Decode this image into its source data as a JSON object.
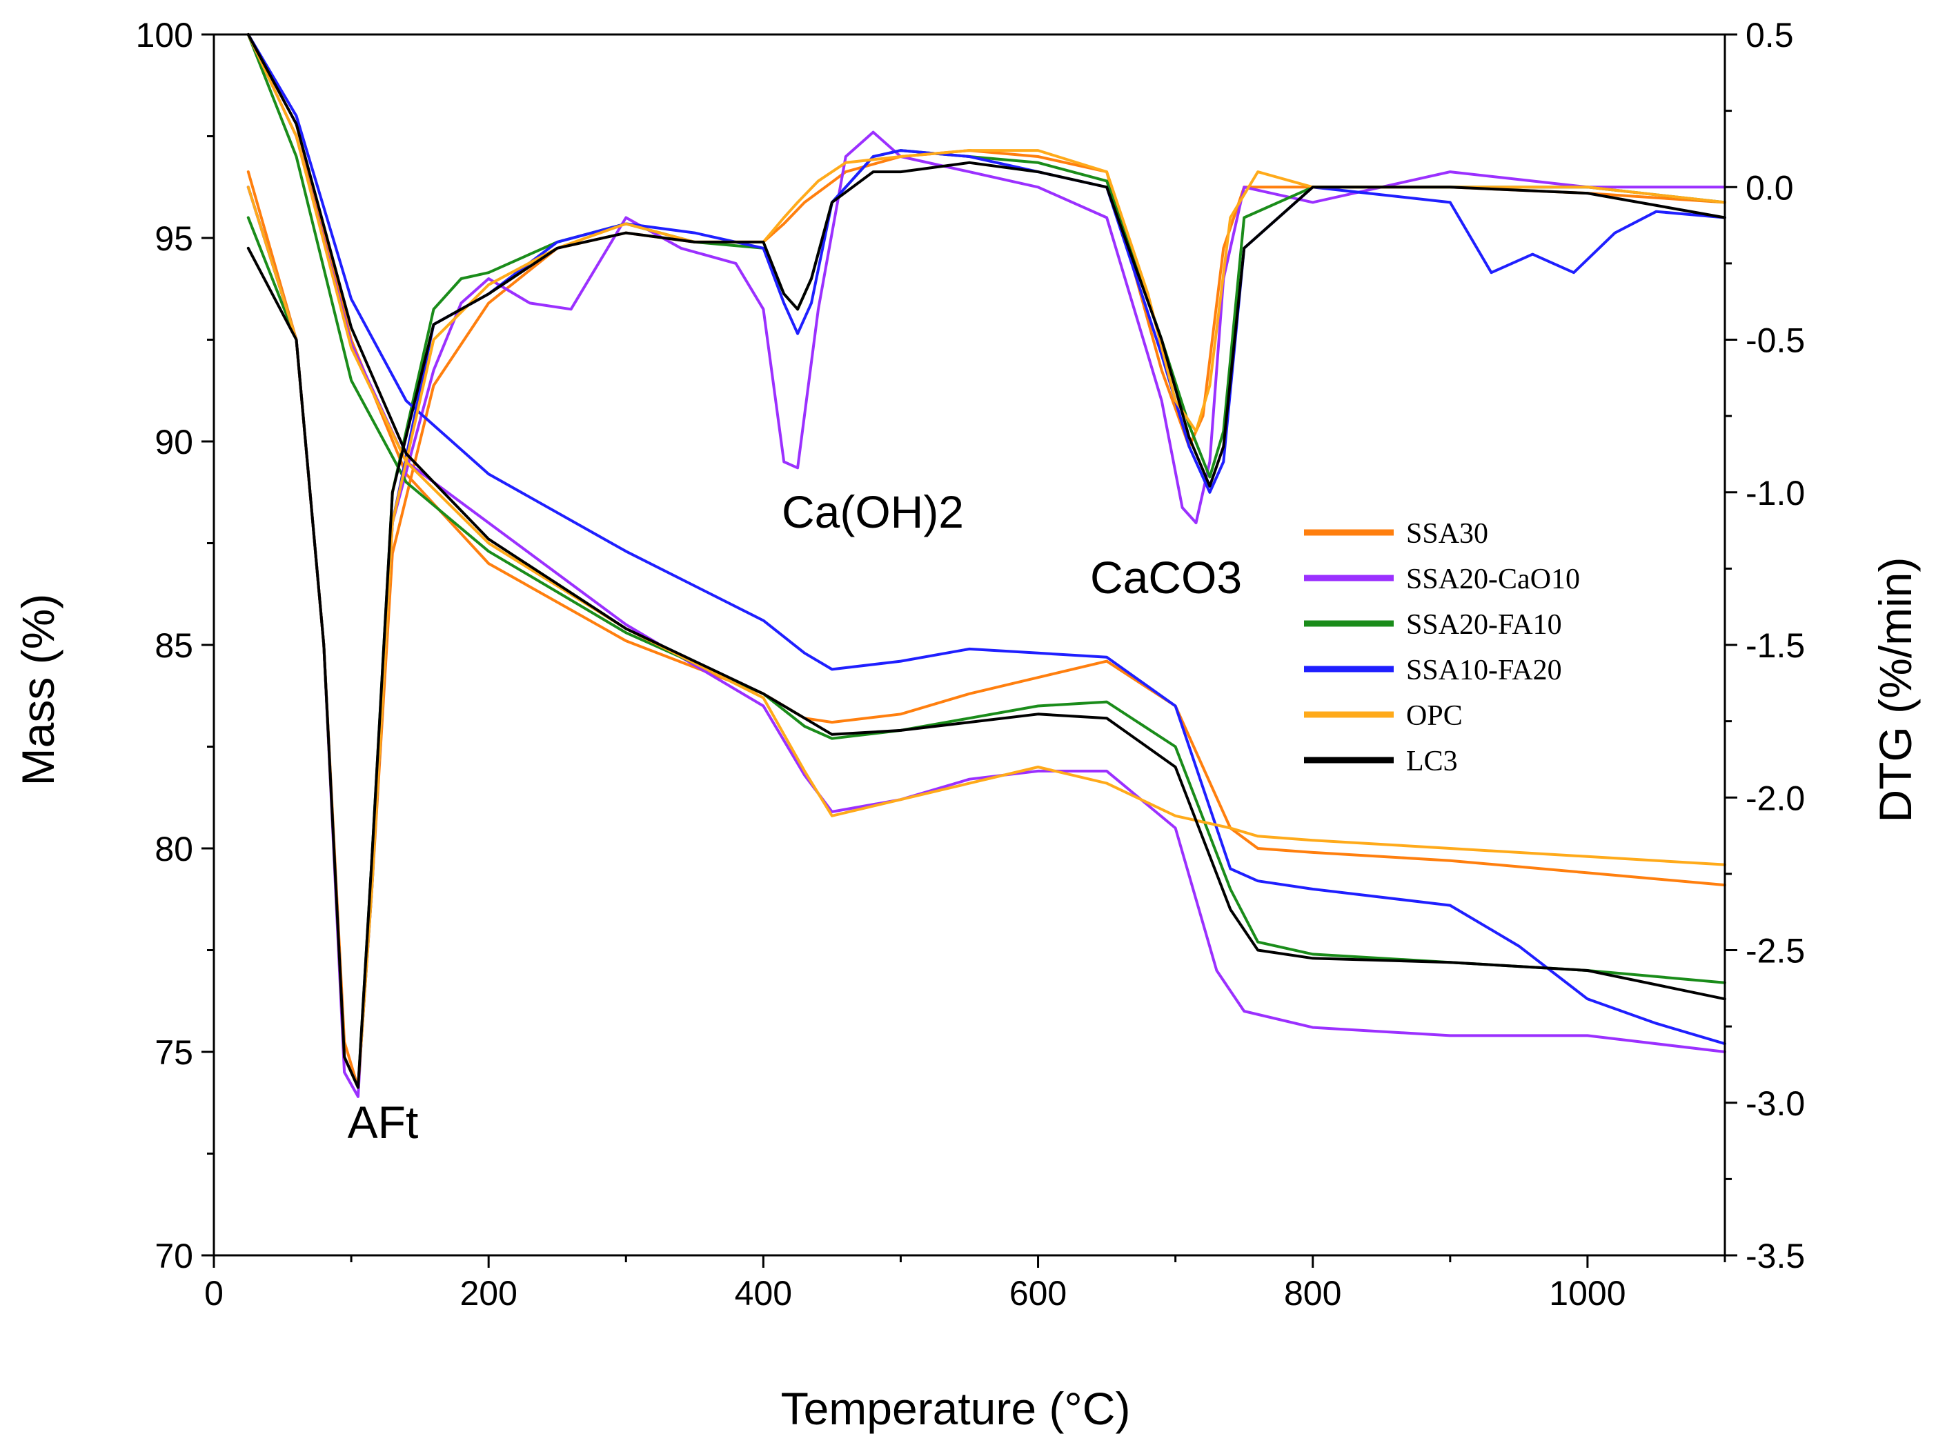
{
  "chart_data": {
    "type": "line",
    "title": "",
    "xlabel": "Temperature (°C)",
    "ylabel_left": "Mass (%)",
    "ylabel_right": "DTG (%/min)",
    "xlim": [
      0,
      1100
    ],
    "ylim_left": [
      70,
      100
    ],
    "ylim_right": [
      -3.5,
      0.5
    ],
    "x_ticks": [
      0,
      200,
      400,
      600,
      800,
      1000
    ],
    "x_tick_labels": [
      "0",
      "200",
      "400",
      "600",
      "800",
      "1000"
    ],
    "left_ticks": [
      70,
      75,
      80,
      85,
      90,
      95,
      100
    ],
    "left_tick_labels": [
      "70",
      "75",
      "80",
      "85",
      "90",
      "95",
      "100"
    ],
    "right_ticks": [
      -3.5,
      -3.0,
      -2.5,
      -2.0,
      -1.5,
      -1.0,
      -0.5,
      0.0,
      0.5
    ],
    "right_tick_labels": [
      "-3.5",
      "-3.0",
      "-2.5",
      "-2.0",
      "-1.5",
      "-1.0",
      "-0.5",
      "0.0",
      "0.5"
    ],
    "grid": false,
    "legend_position": "center-right",
    "annotations": [
      {
        "text": "AFt",
        "x": 100,
        "y_dtg": -3.1
      },
      {
        "text": "Ca(OH)2",
        "x": 480,
        "y_dtg": -1.1
      },
      {
        "text": "CaCO3",
        "x": 785,
        "y_dtg": -1.35
      }
    ],
    "series": [
      {
        "name": "SSA30",
        "color": "#FF7F0E",
        "mass": {
          "x": [
            25,
            60,
            100,
            140,
            200,
            300,
            400,
            430,
            450,
            500,
            550,
            600,
            650,
            700,
            740,
            760,
            800,
            900,
            1000,
            1100
          ],
          "y": [
            100,
            97.8,
            92.5,
            89.2,
            87.0,
            85.1,
            83.8,
            83.2,
            83.1,
            83.3,
            83.8,
            84.2,
            84.6,
            83.5,
            80.5,
            80.0,
            79.9,
            79.7,
            79.4,
            79.1
          ]
        },
        "dtg": {
          "x": [
            25,
            60,
            80,
            95,
            105,
            115,
            130,
            160,
            200,
            250,
            300,
            350,
            400,
            415,
            430,
            445,
            460,
            500,
            550,
            600,
            650,
            690,
            710,
            720,
            735,
            750,
            800,
            900,
            1000,
            1100
          ],
          "y": [
            0.05,
            -0.5,
            -1.5,
            -2.8,
            -2.95,
            -2.3,
            -1.2,
            -0.65,
            -0.38,
            -0.2,
            -0.15,
            -0.18,
            -0.18,
            -0.12,
            -0.05,
            0.0,
            0.05,
            0.1,
            0.12,
            0.1,
            0.05,
            -0.6,
            -0.85,
            -0.75,
            -0.2,
            0.0,
            0.0,
            0.0,
            -0.02,
            -0.05
          ]
        }
      },
      {
        "name": "SSA20-CaO10",
        "color": "#9B30FF",
        "mass": {
          "x": [
            25,
            60,
            100,
            140,
            200,
            300,
            400,
            430,
            450,
            500,
            550,
            600,
            650,
            700,
            730,
            750,
            800,
            900,
            1000,
            1100
          ],
          "y": [
            100,
            97.5,
            92.4,
            89.5,
            88.0,
            85.5,
            83.5,
            81.8,
            80.9,
            81.2,
            81.7,
            81.9,
            81.9,
            80.5,
            77.0,
            76.0,
            75.6,
            75.4,
            75.4,
            75.0
          ]
        },
        "dtg": {
          "x": [
            25,
            60,
            80,
            95,
            105,
            115,
            130,
            160,
            180,
            200,
            230,
            260,
            300,
            340,
            380,
            400,
            415,
            425,
            440,
            460,
            480,
            500,
            550,
            600,
            650,
            690,
            705,
            715,
            725,
            735,
            750,
            800,
            900,
            1000,
            1100
          ],
          "y": [
            0.0,
            -0.5,
            -1.5,
            -2.9,
            -2.98,
            -2.2,
            -1.1,
            -0.6,
            -0.38,
            -0.3,
            -0.38,
            -0.4,
            -0.1,
            -0.2,
            -0.25,
            -0.4,
            -0.9,
            -0.92,
            -0.4,
            0.1,
            0.18,
            0.1,
            0.05,
            0.0,
            -0.1,
            -0.7,
            -1.05,
            -1.1,
            -0.9,
            -0.3,
            0.0,
            -0.05,
            0.05,
            0.0,
            0.0
          ]
        }
      },
      {
        "name": "SSA20-FA10",
        "color": "#1A8C1A",
        "mass": {
          "x": [
            25,
            60,
            100,
            140,
            200,
            300,
            400,
            430,
            450,
            500,
            550,
            600,
            650,
            700,
            740,
            760,
            800,
            900,
            1000,
            1100
          ],
          "y": [
            100,
            97.0,
            91.5,
            89.0,
            87.3,
            85.3,
            83.8,
            83.0,
            82.7,
            82.9,
            83.2,
            83.5,
            83.6,
            82.5,
            79.0,
            77.7,
            77.4,
            77.2,
            77.0,
            76.7
          ]
        },
        "dtg": {
          "x": [
            25,
            60,
            80,
            95,
            105,
            115,
            130,
            160,
            180,
            200,
            250,
            300,
            350,
            400,
            415,
            425,
            435,
            450,
            480,
            500,
            550,
            600,
            650,
            690,
            710,
            725,
            735,
            750,
            800,
            900,
            1000,
            1100
          ],
          "y": [
            -0.1,
            -0.5,
            -1.5,
            -2.85,
            -2.95,
            -2.2,
            -1.0,
            -0.4,
            -0.3,
            -0.28,
            -0.18,
            -0.12,
            -0.18,
            -0.2,
            -0.35,
            -0.4,
            -0.3,
            -0.05,
            0.1,
            0.12,
            0.1,
            0.08,
            0.02,
            -0.5,
            -0.78,
            -0.95,
            -0.8,
            -0.1,
            0.0,
            0.0,
            0.0,
            -0.05
          ]
        }
      },
      {
        "name": "SSA10-FA20",
        "color": "#1F1FFF",
        "mass": {
          "x": [
            25,
            60,
            100,
            140,
            200,
            300,
            400,
            430,
            450,
            500,
            550,
            600,
            650,
            700,
            740,
            760,
            800,
            900,
            950,
            1000,
            1050,
            1100
          ],
          "y": [
            100,
            98.0,
            93.5,
            91.0,
            89.2,
            87.3,
            85.6,
            84.8,
            84.4,
            84.6,
            84.9,
            84.8,
            84.7,
            83.5,
            79.5,
            79.2,
            79.0,
            78.6,
            77.6,
            76.3,
            75.7,
            75.2
          ]
        },
        "dtg": {
          "x": [
            25,
            60,
            80,
            95,
            105,
            115,
            130,
            160,
            200,
            250,
            300,
            350,
            400,
            415,
            425,
            435,
            450,
            480,
            500,
            550,
            600,
            650,
            690,
            710,
            725,
            735,
            750,
            800,
            900,
            930,
            960,
            990,
            1020,
            1050,
            1100
          ],
          "y": [
            0.0,
            -0.5,
            -1.5,
            -2.85,
            -2.95,
            -2.3,
            -1.1,
            -0.45,
            -0.35,
            -0.18,
            -0.12,
            -0.15,
            -0.2,
            -0.38,
            -0.48,
            -0.38,
            -0.05,
            0.1,
            0.12,
            0.1,
            0.05,
            0.0,
            -0.55,
            -0.85,
            -1.0,
            -0.9,
            -0.2,
            0.0,
            -0.05,
            -0.28,
            -0.22,
            -0.28,
            -0.15,
            -0.08,
            -0.1
          ]
        }
      },
      {
        "name": "OPC",
        "color": "#FFAA1A",
        "mass": {
          "x": [
            25,
            60,
            100,
            140,
            200,
            300,
            400,
            430,
            450,
            500,
            550,
            600,
            650,
            700,
            740,
            760,
            800,
            900,
            1000,
            1100
          ],
          "y": [
            100,
            97.5,
            92.3,
            89.5,
            87.5,
            85.4,
            83.7,
            81.9,
            80.8,
            81.2,
            81.6,
            82.0,
            81.6,
            80.8,
            80.5,
            80.3,
            80.2,
            80.0,
            79.8,
            79.6
          ]
        },
        "dtg": {
          "x": [
            25,
            60,
            80,
            95,
            105,
            115,
            130,
            160,
            200,
            250,
            300,
            350,
            400,
            415,
            425,
            440,
            460,
            500,
            550,
            600,
            650,
            680,
            700,
            715,
            725,
            740,
            760,
            800,
            900,
            1000,
            1100
          ],
          "y": [
            0.0,
            -0.5,
            -1.5,
            -2.85,
            -2.95,
            -2.3,
            -1.1,
            -0.5,
            -0.32,
            -0.2,
            -0.12,
            -0.18,
            -0.18,
            -0.1,
            -0.05,
            0.02,
            0.08,
            0.1,
            0.12,
            0.12,
            0.05,
            -0.35,
            -0.7,
            -0.8,
            -0.65,
            -0.1,
            0.05,
            0.0,
            0.0,
            0.0,
            -0.05
          ]
        }
      },
      {
        "name": "LC3",
        "color": "#000000",
        "mass": {
          "x": [
            25,
            60,
            100,
            140,
            200,
            300,
            400,
            430,
            450,
            500,
            550,
            600,
            650,
            700,
            740,
            760,
            800,
            900,
            1000,
            1100
          ],
          "y": [
            100,
            97.8,
            92.8,
            89.7,
            87.6,
            85.4,
            83.8,
            83.2,
            82.8,
            82.9,
            83.1,
            83.3,
            83.2,
            82.0,
            78.5,
            77.5,
            77.3,
            77.2,
            77.0,
            76.3
          ]
        },
        "dtg": {
          "x": [
            25,
            60,
            80,
            95,
            105,
            115,
            130,
            160,
            200,
            250,
            300,
            350,
            400,
            415,
            425,
            435,
            450,
            480,
            500,
            550,
            600,
            650,
            690,
            710,
            725,
            735,
            750,
            800,
            900,
            1000,
            1100
          ],
          "y": [
            -0.2,
            -0.5,
            -1.5,
            -2.85,
            -2.95,
            -2.2,
            -1.0,
            -0.45,
            -0.35,
            -0.2,
            -0.15,
            -0.18,
            -0.18,
            -0.35,
            -0.4,
            -0.3,
            -0.05,
            0.05,
            0.05,
            0.08,
            0.05,
            0.0,
            -0.5,
            -0.82,
            -0.98,
            -0.85,
            -0.2,
            0.0,
            0.0,
            -0.02,
            -0.1
          ]
        }
      }
    ]
  }
}
